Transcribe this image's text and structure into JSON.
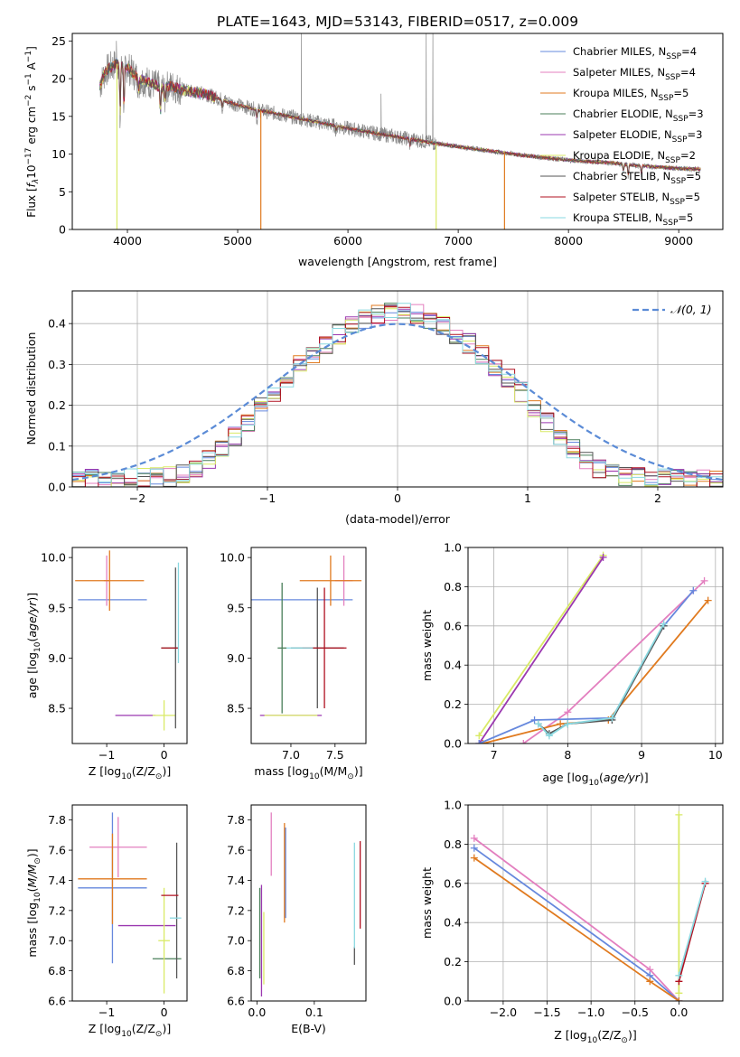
{
  "figure_title": "PLATE=1643, MJD=53143, FIBERID=0517, z=0.009",
  "colors": {
    "chabrier_miles": "#6688dd",
    "salpeter_miles": "#e37fbf",
    "kroupa_miles": "#e07a1f",
    "chabrier_elodie": "#4a7f5a",
    "salpeter_elodie": "#9b38b0",
    "kroupa_elodie": "#d9ea66",
    "chabrier_stelib": "#555555",
    "salpeter_stelib": "#b01020",
    "kroupa_stelib": "#8ad8e0",
    "data_grey": "#888888",
    "gauss": "#5b8bd6"
  },
  "chart_data": [
    {
      "id": "spectrum",
      "type": "line",
      "xlabel": "wavelength [Angstrom, rest frame]",
      "ylabel": "Flux [f_λ 10^-17 erg cm^-2 s^-1 A^-1]",
      "xlim": [
        3500,
        9400
      ],
      "ylim": [
        0,
        26
      ],
      "xticks": [
        4000,
        5000,
        6000,
        7000,
        8000,
        9000
      ],
      "yticks": [
        0,
        5,
        10,
        15,
        20,
        25
      ],
      "legend_position": "top-right",
      "legend": [
        {
          "base": "Chabrier MILES, N",
          "sub": "SSP",
          "tail": "=4",
          "color_key": "chabrier_miles"
        },
        {
          "base": "Salpeter MILES, N",
          "sub": "SSP",
          "tail": "=4",
          "color_key": "salpeter_miles"
        },
        {
          "base": "Kroupa MILES, N",
          "sub": "SSP",
          "tail": "=5",
          "color_key": "kroupa_miles"
        },
        {
          "base": "Chabrier ELODIE, N",
          "sub": "SSP",
          "tail": "=3",
          "color_key": "chabrier_elodie"
        },
        {
          "base": "Salpeter ELODIE, N",
          "sub": "SSP",
          "tail": "=3",
          "color_key": "salpeter_elodie"
        },
        {
          "base": "Kroupa ELODIE, N",
          "sub": "SSP",
          "tail": "=2",
          "color_key": "kroupa_elodie"
        },
        {
          "base": "Chabrier STELIB, N",
          "sub": "SSP",
          "tail": "=5",
          "color_key": "chabrier_stelib"
        },
        {
          "base": "Salpeter STELIB, N",
          "sub": "SSP",
          "tail": "=5",
          "color_key": "salpeter_stelib"
        },
        {
          "base": "Kroupa STELIB, N",
          "sub": "SSP",
          "tail": "=5",
          "color_key": "kroupa_stelib"
        }
      ],
      "continuum": [
        [
          3750,
          19
        ],
        [
          3800,
          21
        ],
        [
          3900,
          22
        ],
        [
          4000,
          21.5
        ],
        [
          4100,
          20
        ],
        [
          4200,
          19.5
        ],
        [
          4300,
          18.8
        ],
        [
          4400,
          19
        ],
        [
          4500,
          18.5
        ],
        [
          4600,
          18.2
        ],
        [
          4700,
          18
        ],
        [
          4800,
          17.5
        ],
        [
          4900,
          17
        ],
        [
          5000,
          16.5
        ],
        [
          5200,
          15.8
        ],
        [
          5400,
          15.2
        ],
        [
          5600,
          14.6
        ],
        [
          5800,
          14
        ],
        [
          6000,
          13.4
        ],
        [
          6200,
          12.9
        ],
        [
          6400,
          12.4
        ],
        [
          6600,
          11.9
        ],
        [
          6800,
          11.4
        ],
        [
          7000,
          11
        ],
        [
          7200,
          10.6
        ],
        [
          7400,
          10.2
        ],
        [
          7600,
          9.8
        ],
        [
          7800,
          9.5
        ],
        [
          8000,
          9.2
        ],
        [
          8200,
          9
        ],
        [
          8400,
          8.8
        ],
        [
          8600,
          8.5
        ],
        [
          8800,
          8.3
        ],
        [
          9000,
          8.1
        ],
        [
          9200,
          8
        ]
      ],
      "absorption_lines": [
        [
          3934,
          14
        ],
        [
          3969,
          15
        ],
        [
          4102,
          18
        ],
        [
          4300,
          15
        ],
        [
          4340,
          17
        ],
        [
          4861,
          16
        ],
        [
          5175,
          14.5
        ],
        [
          5893,
          13
        ],
        [
          6563,
          11
        ],
        [
          8498,
          7.5
        ],
        [
          8542,
          7
        ],
        [
          8662,
          7.2
        ]
      ],
      "sky_spikes": [
        [
          3900,
          25
        ],
        [
          5577,
          26
        ],
        [
          6300,
          18
        ],
        [
          6710,
          26
        ],
        [
          6770,
          26
        ]
      ],
      "model_drops": [
        [
          3905,
          "kroupa_elodie"
        ],
        [
          5210,
          "kroupa_miles"
        ],
        [
          6800,
          "kroupa_elodie"
        ],
        [
          7420,
          "kroupa_miles"
        ]
      ]
    },
    {
      "id": "residuals",
      "type": "histogram",
      "xlabel": "(data-model)/error",
      "ylabel": "Normed distribution",
      "xlim": [
        -2.5,
        2.5
      ],
      "ylim": [
        0,
        0.48
      ],
      "xticks": [
        -2,
        -1,
        0,
        1,
        2
      ],
      "yticks": [
        0.0,
        0.1,
        0.2,
        0.3,
        0.4
      ],
      "grid": true,
      "legend_position": "top-right",
      "gauss_label": "𝒩(0, 1)",
      "bin_width": 0.1
    },
    {
      "id": "age_vs_Z",
      "type": "errorbar",
      "xlabel_base": "Z [log",
      "xlabel_sub": "10",
      "xlabel_tail": "(Z/Z",
      "ylabel": "age [log10(age/yr)]",
      "xlim": [
        -1.6,
        0.4
      ],
      "ylim": [
        8.15,
        10.1
      ],
      "xticks": [
        -1,
        0
      ],
      "yticks": [
        8.5,
        9.0,
        9.5,
        10.0
      ],
      "points": [
        {
          "x": -0.9,
          "y": 9.58,
          "xerr": 0.6,
          "yerr": 0.0,
          "color_key": "chabrier_miles"
        },
        {
          "x": -1.0,
          "y": 9.77,
          "xerr": 0.05,
          "yerr": 0.25,
          "color_key": "salpeter_miles"
        },
        {
          "x": -0.95,
          "y": 9.77,
          "xerr": 0.6,
          "yerr": 0.3,
          "color_key": "kroupa_miles"
        },
        {
          "x": 0.1,
          "y": 9.1,
          "xerr": 0.15,
          "yerr": 0.0,
          "color_key": "chabrier_elodie"
        },
        {
          "x": -0.5,
          "y": 8.43,
          "xerr": 0.35,
          "yerr": 0.0,
          "color_key": "salpeter_elodie"
        },
        {
          "x": 0.0,
          "y": 8.43,
          "xerr": 0.2,
          "yerr": 0.15,
          "color_key": "kroupa_elodie"
        },
        {
          "x": 0.2,
          "y": 9.1,
          "xerr": 0.05,
          "yerr": 0.8,
          "color_key": "chabrier_stelib"
        },
        {
          "x": 0.1,
          "y": 9.1,
          "xerr": 0.15,
          "yerr": 0.0,
          "color_key": "salpeter_stelib"
        },
        {
          "x": 0.25,
          "y": 9.45,
          "xerr": 0.0,
          "yerr": 0.5,
          "color_key": "kroupa_stelib"
        }
      ]
    },
    {
      "id": "age_vs_mass",
      "type": "errorbar",
      "xlabel_base": "mass [log",
      "xlabel_sub": "10",
      "xlabel_tail": "(M/M",
      "ylabel": "",
      "xlim": [
        6.55,
        7.85
      ],
      "ylim": [
        8.15,
        10.1
      ],
      "xticks": [
        7.0,
        7.5
      ],
      "yticks": [
        8.5,
        9.0,
        9.5,
        10.0
      ],
      "points": [
        {
          "x": 7.1,
          "y": 9.58,
          "xerr": 0.6,
          "yerr": 0.0,
          "color_key": "chabrier_miles"
        },
        {
          "x": 7.6,
          "y": 9.77,
          "xerr": 0.1,
          "yerr": 0.25,
          "color_key": "salpeter_miles"
        },
        {
          "x": 7.45,
          "y": 9.77,
          "xerr": 0.35,
          "yerr": 0.25,
          "color_key": "kroupa_miles"
        },
        {
          "x": 6.9,
          "y": 9.1,
          "xerr": 0.05,
          "yerr": 0.65,
          "color_key": "chabrier_elodie"
        },
        {
          "x": 7.0,
          "y": 8.43,
          "xerr": 0.35,
          "yerr": 0.0,
          "color_key": "salpeter_elodie"
        },
        {
          "x": 7.0,
          "y": 8.43,
          "xerr": 0.3,
          "yerr": 0.0,
          "color_key": "kroupa_elodie"
        },
        {
          "x": 7.3,
          "y": 9.1,
          "xerr": 0.3,
          "yerr": 0.6,
          "color_key": "chabrier_stelib"
        },
        {
          "x": 7.38,
          "y": 9.1,
          "xerr": 0.25,
          "yerr": 0.6,
          "color_key": "salpeter_stelib"
        },
        {
          "x": 7.1,
          "y": 9.1,
          "xerr": 0.15,
          "yerr": 0.0,
          "color_key": "kroupa_stelib"
        }
      ]
    },
    {
      "id": "weight_vs_age",
      "type": "line",
      "xlabel": "age [log10(age/yr)]",
      "ylabel": "mass weight",
      "xlim": [
        6.65,
        10.1
      ],
      "ylim": [
        0,
        1.0
      ],
      "xticks": [
        7,
        8,
        9,
        10
      ],
      "yticks": [
        0.0,
        0.2,
        0.4,
        0.6,
        0.8,
        1.0
      ],
      "grid": true,
      "series": [
        {
          "color_key": "kroupa_elodie",
          "x": [
            6.8,
            8.48
          ],
          "y": [
            0.04,
            0.96
          ]
        },
        {
          "color_key": "salpeter_elodie",
          "x": [
            6.8,
            8.48
          ],
          "y": [
            0.0,
            0.95
          ]
        },
        {
          "color_key": "salpeter_miles",
          "x": [
            7.4,
            8.0,
            9.85
          ],
          "y": [
            0.0,
            0.16,
            0.83
          ]
        },
        {
          "color_key": "kroupa_miles",
          "x": [
            6.85,
            7.9,
            8.55,
            9.9
          ],
          "y": [
            0.0,
            0.1,
            0.12,
            0.73
          ]
        },
        {
          "color_key": "chabrier_miles",
          "x": [
            6.8,
            7.55,
            8.6,
            9.3,
            9.7
          ],
          "y": [
            0.0,
            0.12,
            0.13,
            0.6,
            0.78
          ]
        },
        {
          "color_key": "chabrier_stelib",
          "x": [
            7.6,
            7.75,
            8.0,
            8.6,
            9.3
          ],
          "y": [
            0.1,
            0.05,
            0.1,
            0.12,
            0.6
          ]
        },
        {
          "color_key": "kroupa_stelib",
          "x": [
            7.6,
            7.75,
            8.0,
            8.6,
            9.3
          ],
          "y": [
            0.1,
            0.04,
            0.1,
            0.13,
            0.61
          ]
        }
      ]
    },
    {
      "id": "mass_vs_Z",
      "type": "errorbar",
      "xlabel_base": "Z [log",
      "xlabel_sub": "10",
      "xlabel_tail": "(Z/Z",
      "ylabel": "mass [log10(M/M☉)]",
      "xlim": [
        -1.6,
        0.4
      ],
      "ylim": [
        6.6,
        7.9
      ],
      "xticks": [
        -1,
        0
      ],
      "yticks": [
        6.6,
        6.8,
        7.0,
        7.2,
        7.4,
        7.6,
        7.8
      ],
      "points": [
        {
          "x": -0.9,
          "y": 7.35,
          "xerr": 0.6,
          "yerr": 0.5,
          "color_key": "chabrier_miles"
        },
        {
          "x": -0.8,
          "y": 7.62,
          "xerr": 0.5,
          "yerr": 0.2,
          "color_key": "salpeter_miles"
        },
        {
          "x": -0.9,
          "y": 7.41,
          "xerr": 0.6,
          "yerr": 0.3,
          "color_key": "kroupa_miles"
        },
        {
          "x": 0.05,
          "y": 6.88,
          "xerr": 0.25,
          "yerr": 0.0,
          "color_key": "chabrier_elodie"
        },
        {
          "x": -0.3,
          "y": 7.1,
          "xerr": 0.5,
          "yerr": 0.0,
          "color_key": "salpeter_elodie"
        },
        {
          "x": 0.0,
          "y": 7.0,
          "xerr": 0.1,
          "yerr": 0.35,
          "color_key": "kroupa_elodie"
        },
        {
          "x": 0.22,
          "y": 7.2,
          "xerr": 0.0,
          "yerr": 0.45,
          "color_key": "chabrier_stelib"
        },
        {
          "x": 0.1,
          "y": 7.3,
          "xerr": 0.15,
          "yerr": 0.0,
          "color_key": "salpeter_stelib"
        },
        {
          "x": 0.2,
          "y": 7.15,
          "xerr": 0.1,
          "yerr": 0.0,
          "color_key": "kroupa_stelib"
        }
      ]
    },
    {
      "id": "mass_vs_ebv",
      "type": "errorbar",
      "xlabel": "E(B-V)",
      "ylabel": "",
      "xlim": [
        -0.01,
        0.19
      ],
      "ylim": [
        6.6,
        7.9
      ],
      "xticks": [
        0.0,
        0.1
      ],
      "yticks": [
        6.6,
        6.8,
        7.0,
        7.2,
        7.4,
        7.6,
        7.8
      ],
      "points": [
        {
          "x": 0.05,
          "y": 7.45,
          "xerr": 0.0,
          "yerr": 0.3,
          "color_key": "chabrier_miles"
        },
        {
          "x": 0.025,
          "y": 7.64,
          "xerr": 0.0,
          "yerr": 0.21,
          "color_key": "salpeter_miles"
        },
        {
          "x": 0.048,
          "y": 7.45,
          "xerr": 0.0,
          "yerr": 0.33,
          "color_key": "kroupa_miles"
        },
        {
          "x": 0.005,
          "y": 7.05,
          "xerr": 0.0,
          "yerr": 0.3,
          "color_key": "chabrier_elodie"
        },
        {
          "x": 0.008,
          "y": 7.0,
          "xerr": 0.0,
          "yerr": 0.37,
          "color_key": "salpeter_elodie"
        },
        {
          "x": 0.012,
          "y": 6.95,
          "xerr": 0.0,
          "yerr": 0.24,
          "color_key": "kroupa_elodie"
        },
        {
          "x": 0.17,
          "y": 6.9,
          "xerr": 0.0,
          "yerr": 0.06,
          "color_key": "chabrier_stelib"
        },
        {
          "x": 0.18,
          "y": 7.37,
          "xerr": 0.0,
          "yerr": 0.29,
          "color_key": "salpeter_stelib"
        },
        {
          "x": 0.17,
          "y": 7.3,
          "xerr": 0.0,
          "yerr": 0.35,
          "color_key": "kroupa_stelib"
        }
      ]
    },
    {
      "id": "weight_vs_Z",
      "type": "line",
      "xlabel_base": "Z [log",
      "xlabel_sub": "10",
      "xlabel_tail": "(Z/Z",
      "ylabel": "mass weight",
      "xlim": [
        -2.4,
        0.5
      ],
      "ylim": [
        0,
        1.0
      ],
      "xticks": [
        -2.0,
        -1.5,
        -1.0,
        -0.5,
        0.0
      ],
      "yticks": [
        0.0,
        0.2,
        0.4,
        0.6,
        0.8,
        1.0
      ],
      "grid": true,
      "series": [
        {
          "color_key": "kroupa_elodie",
          "x": [
            0.0,
            0.0
          ],
          "y": [
            0.04,
            0.95
          ]
        },
        {
          "color_key": "salpeter_miles",
          "x": [
            -2.33,
            -0.33,
            0.0
          ],
          "y": [
            0.83,
            0.16,
            0.0
          ]
        },
        {
          "color_key": "chabrier_miles",
          "x": [
            -2.33,
            -0.33,
            0.0
          ],
          "y": [
            0.78,
            0.13,
            0.0
          ]
        },
        {
          "color_key": "kroupa_miles",
          "x": [
            -2.33,
            -0.33,
            0.0
          ],
          "y": [
            0.73,
            0.1,
            0.0
          ]
        },
        {
          "color_key": "salpeter_stelib",
          "x": [
            0.0,
            0.3
          ],
          "y": [
            0.1,
            0.6
          ]
        },
        {
          "color_key": "kroupa_stelib",
          "x": [
            0.0,
            0.3
          ],
          "y": [
            0.13,
            0.61
          ]
        }
      ]
    }
  ]
}
